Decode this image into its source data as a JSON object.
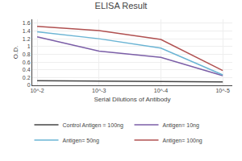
{
  "chart_data": {
    "type": "line",
    "title": "ELISA Result",
    "xlabel": "Serial Dilutions of Antibody",
    "ylabel": "O.D.",
    "log": "x",
    "x": [
      0.01,
      0.001,
      0.0001,
      1e-05
    ],
    "series": [
      {
        "name": "Control Antigen = 100ng",
        "color": "#444444",
        "values": [
          0.12,
          0.11,
          0.1,
          0.09
        ]
      },
      {
        "name": "Antigen= 10ng",
        "color": "#7b5ea7",
        "values": [
          1.25,
          0.88,
          0.72,
          0.25
        ]
      },
      {
        "name": "Antigen= 50ng",
        "color": "#6ab4d4",
        "values": [
          1.38,
          1.2,
          0.96,
          0.27
        ]
      },
      {
        "name": "Antigen= 100ng",
        "color": "#b05050",
        "values": [
          1.52,
          1.41,
          1.18,
          0.38
        ]
      }
    ],
    "xlim": [
      0.012,
      7e-06
    ],
    "xticks": [
      {
        "value": 0.01,
        "label": "10^-2"
      },
      {
        "value": 0.001,
        "label": "10^-3"
      },
      {
        "value": 0.0001,
        "label": "10^-4"
      },
      {
        "value": 1e-05,
        "label": "10^-5"
      }
    ],
    "ylim": [
      0,
      1.7
    ],
    "yticks": [
      0,
      0.2,
      0.4,
      0.6,
      0.8,
      1.0,
      1.2,
      1.4,
      1.6
    ],
    "grid": true,
    "legend": "bottom"
  }
}
